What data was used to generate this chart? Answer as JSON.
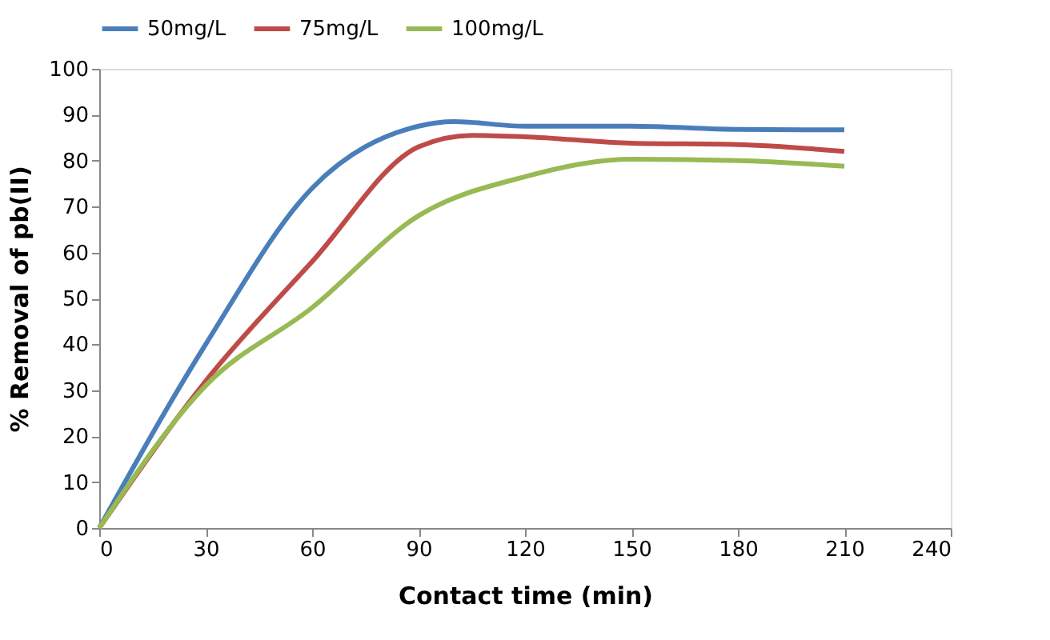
{
  "chart_data": {
    "type": "line",
    "xlabel": "Contact time (min)",
    "ylabel": "% Removal of pb(II)",
    "xlim": [
      0,
      240
    ],
    "xticks": [
      0,
      30,
      60,
      90,
      120,
      150,
      180,
      210,
      240
    ],
    "ylim": [
      0,
      100
    ],
    "yticks": [
      0,
      10,
      20,
      30,
      40,
      50,
      60,
      70,
      80,
      90,
      100
    ],
    "grid": false,
    "legend": "top",
    "marker": "none",
    "line_style": "solid",
    "series": [
      {
        "name": "50mg/L",
        "color": "#4a7ebb",
        "x": [
          0,
          30,
          60,
          90,
          100,
          120,
          150,
          180,
          210
        ],
        "values": [
          0,
          40,
          74,
          87.5,
          88.5,
          87.5,
          87.5,
          86.8,
          86.7
        ]
      },
      {
        "name": "75mg/L",
        "color": "#be4b48",
        "x": [
          0,
          30,
          60,
          90,
          105,
          120,
          150,
          180,
          210
        ],
        "values": [
          0,
          32,
          58,
          83,
          85.5,
          85.2,
          83.8,
          83.5,
          82
        ]
      },
      {
        "name": "100mg/L",
        "color": "#98b954",
        "x": [
          0,
          30,
          60,
          90,
          120,
          150,
          180,
          210
        ],
        "values": [
          0,
          31,
          48,
          68,
          76.5,
          80.3,
          80,
          78.8
        ]
      }
    ]
  }
}
